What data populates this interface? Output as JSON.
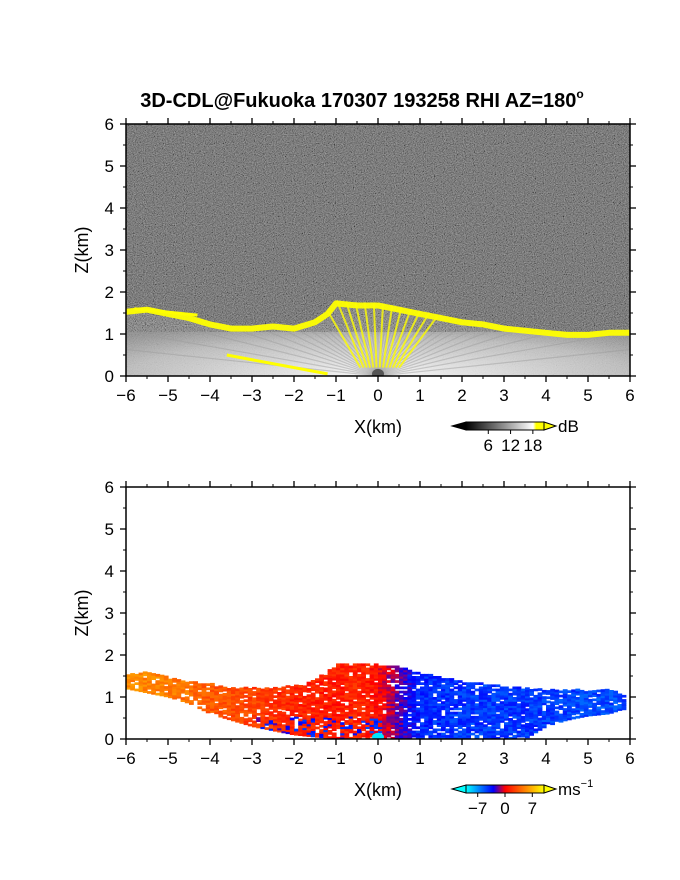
{
  "title": "3D-CDL@Fukuoka 170307 193258 RHI AZ=180",
  "title_degree_mark": "o",
  "colors": {
    "noise_base": "#333333",
    "snr_highlight": "#ffff00",
    "velocity_negative": "#1a64ff",
    "velocity_positive": "#ff5a1e",
    "velocity_far": "#ffd21e"
  },
  "chart_data": [
    {
      "type": "heatmap",
      "panel": "snr",
      "xlabel": "X(km)",
      "ylabel": "Z(km)",
      "xlim": [
        -6,
        6
      ],
      "ylim": [
        0,
        6
      ],
      "x_ticks": [
        "-6",
        "-5",
        "-4",
        "-3",
        "-2",
        "-1",
        "0",
        "1",
        "2",
        "3",
        "4",
        "5",
        "6"
      ],
      "y_ticks": [
        "0",
        "1",
        "2",
        "3",
        "4",
        "5",
        "6"
      ],
      "colorbar": {
        "unit": "dB",
        "ticks": [
          "6",
          "12",
          "18"
        ],
        "tick_values": [
          6,
          12,
          18
        ],
        "range": [
          0,
          21
        ],
        "colors": [
          "#000000",
          "#ffffff",
          "#ffff00"
        ]
      },
      "echo_top_km": [
        [
          -6,
          1.6
        ],
        [
          -5.5,
          1.65
        ],
        [
          -5,
          1.55
        ],
        [
          -4.5,
          1.45
        ],
        [
          -4,
          1.3
        ],
        [
          -3.5,
          1.2
        ],
        [
          -3,
          1.2
        ],
        [
          -2.5,
          1.25
        ],
        [
          -2,
          1.2
        ],
        [
          -1.5,
          1.35
        ],
        [
          -1.2,
          1.55
        ],
        [
          -1,
          1.8
        ],
        [
          -0.5,
          1.75
        ],
        [
          0,
          1.75
        ],
        [
          0.5,
          1.65
        ],
        [
          1,
          1.55
        ],
        [
          1.5,
          1.45
        ],
        [
          2,
          1.35
        ],
        [
          2.5,
          1.3
        ],
        [
          3,
          1.2
        ],
        [
          3.5,
          1.15
        ],
        [
          4,
          1.1
        ],
        [
          4.5,
          1.05
        ],
        [
          5,
          1.05
        ],
        [
          5.5,
          1.1
        ],
        [
          6,
          1.1
        ]
      ]
    },
    {
      "type": "heatmap",
      "panel": "velocity",
      "xlabel": "X(km)",
      "ylabel": "Z(km)",
      "xlim": [
        -6,
        6
      ],
      "ylim": [
        0,
        6
      ],
      "x_ticks": [
        "-6",
        "-5",
        "-4",
        "-3",
        "-2",
        "-1",
        "0",
        "1",
        "2",
        "3",
        "4",
        "5",
        "6"
      ],
      "y_ticks": [
        "0",
        "1",
        "2",
        "3",
        "4",
        "5",
        "6"
      ],
      "colorbar": {
        "unit": "ms",
        "unit_exponent": "-1",
        "ticks": [
          "−7",
          "0",
          "7"
        ],
        "tick_values": [
          -7,
          0,
          7
        ],
        "range": [
          -10,
          10
        ],
        "colors": [
          "#00ffff",
          "#0000ff",
          "#ff0000",
          "#ffff00"
        ]
      },
      "echo_top_km": [
        [
          -6,
          1.5
        ],
        [
          -5.5,
          1.6
        ],
        [
          -5,
          1.45
        ],
        [
          -4.5,
          1.35
        ],
        [
          -4,
          1.3
        ],
        [
          -3.5,
          1.2
        ],
        [
          -3,
          1.2
        ],
        [
          -2.5,
          1.2
        ],
        [
          -2,
          1.25
        ],
        [
          -1.5,
          1.4
        ],
        [
          -1.2,
          1.6
        ],
        [
          -1,
          1.8
        ],
        [
          -0.5,
          1.8
        ],
        [
          0,
          1.75
        ],
        [
          0.5,
          1.7
        ],
        [
          1,
          1.55
        ],
        [
          1.5,
          1.45
        ],
        [
          2,
          1.35
        ],
        [
          2.5,
          1.3
        ],
        [
          3,
          1.25
        ],
        [
          3.5,
          1.2
        ],
        [
          4,
          1.15
        ],
        [
          4.5,
          1.15
        ],
        [
          5,
          1.15
        ],
        [
          5.5,
          1.15
        ],
        [
          5.8,
          1.05
        ]
      ],
      "echo_bottom_km": [
        [
          -6,
          1.2
        ],
        [
          -5.5,
          1.1
        ],
        [
          -5,
          1.0
        ],
        [
          -4.5,
          0.85
        ],
        [
          -4,
          0.6
        ],
        [
          -3.5,
          0.45
        ],
        [
          -3,
          0.3
        ],
        [
          -2.5,
          0.2
        ],
        [
          -2,
          0.1
        ],
        [
          -1.5,
          0.05
        ],
        [
          -1,
          0.0
        ],
        [
          0,
          0.0
        ],
        [
          1,
          0.0
        ],
        [
          2,
          0.0
        ],
        [
          3,
          0.0
        ],
        [
          3.5,
          0.0
        ],
        [
          4,
          0.3
        ],
        [
          4.5,
          0.45
        ],
        [
          5,
          0.55
        ],
        [
          5.5,
          0.6
        ],
        [
          5.8,
          0.7
        ]
      ],
      "velocity_ms": [
        [
          -6,
          5.5
        ],
        [
          -5,
          5.0
        ],
        [
          -4,
          3.5
        ],
        [
          -3,
          2.5
        ],
        [
          -2,
          1.5
        ],
        [
          -1,
          1.0
        ],
        [
          -0.5,
          1.5
        ],
        [
          0,
          0.5
        ],
        [
          0.5,
          -2.0
        ],
        [
          1,
          -4.0
        ],
        [
          2,
          -4.5
        ],
        [
          3,
          -4.5
        ],
        [
          4,
          -4.5
        ],
        [
          5,
          -5.0
        ],
        [
          5.8,
          -5.0
        ]
      ]
    }
  ]
}
